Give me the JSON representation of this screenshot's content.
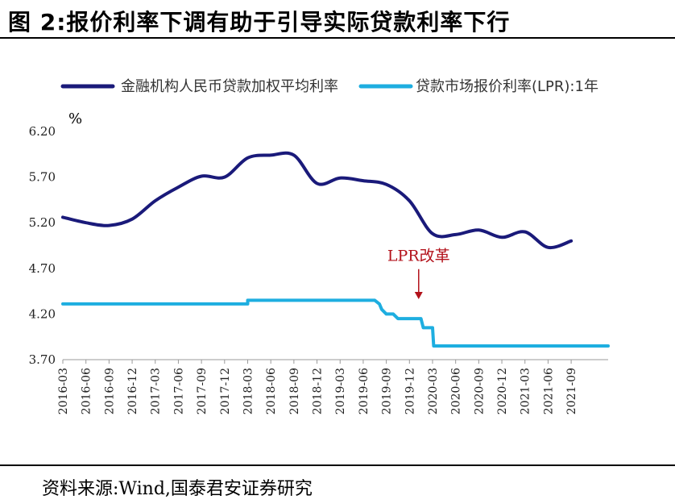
{
  "figure": {
    "title": "图 2:报价利率下调有助于引导实际贷款利率下行",
    "source": "资料来源:Wind,国泰君安证券研究"
  },
  "chart_data": {
    "type": "line",
    "unit_label": "%",
    "ylim": [
      3.7,
      6.2
    ],
    "yticks": [
      "6.20",
      "5.70",
      "5.20",
      "4.70",
      "4.20",
      "3.70"
    ],
    "x_tick_labels": [
      "2016-03",
      "2016-06",
      "2016-09",
      "2016-12",
      "2017-03",
      "2017-06",
      "2017-09",
      "2017-12",
      "2018-03",
      "2018-06",
      "2018-09",
      "2018-12",
      "2019-03",
      "2019-06",
      "2019-09",
      "2019-12",
      "2020-03",
      "2020-06",
      "2020-09",
      "2020-12",
      "2021-03",
      "2021-06",
      "2021-09"
    ],
    "x_range": [
      0,
      23.6
    ],
    "grid": false,
    "legend_position": "top",
    "annotation": {
      "text": "LPR改革",
      "x": 15.4,
      "y_text": 4.78,
      "arrow_to": 4.31,
      "color": "#b3121b"
    },
    "series": [
      {
        "name": "金融机构人民币贷款加权平均利率",
        "color": "#1a1a7a",
        "x": [
          0,
          1,
          2,
          3,
          4,
          5,
          6,
          7,
          8,
          9,
          10,
          11,
          12,
          13,
          14,
          15,
          16,
          17,
          18,
          19,
          20,
          21,
          22
        ],
        "y": [
          5.26,
          5.2,
          5.17,
          5.24,
          5.44,
          5.59,
          5.71,
          5.7,
          5.91,
          5.94,
          5.94,
          5.63,
          5.69,
          5.66,
          5.62,
          5.44,
          5.08,
          5.07,
          5.12,
          5.04,
          5.1,
          4.93,
          5.0
        ]
      },
      {
        "name": "贷款市场报价利率(LPR):1年",
        "color": "#1eaee0",
        "x": [
          0,
          8,
          8,
          13.5,
          13.7,
          13.8,
          14,
          14.3,
          14.5,
          15,
          15.1,
          15.5,
          15.6,
          16,
          16.05,
          16.3,
          16.4,
          23.6
        ],
        "y": [
          4.31,
          4.31,
          4.35,
          4.35,
          4.31,
          4.25,
          4.2,
          4.2,
          4.15,
          4.15,
          4.15,
          4.15,
          4.05,
          4.05,
          3.85,
          3.85,
          3.85,
          3.85
        ]
      }
    ]
  }
}
